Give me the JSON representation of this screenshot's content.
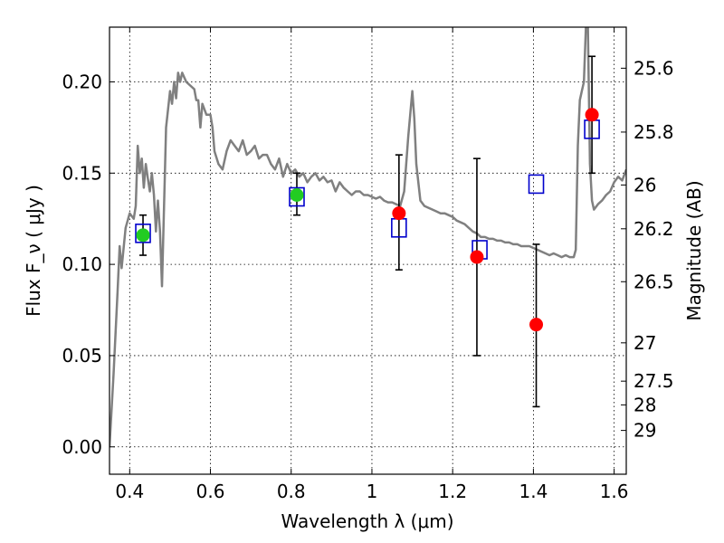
{
  "chart_data": {
    "type": "scatter",
    "xlabel": "Wavelength  λ (μm)",
    "ylabel": "Flux  F_ν  ( μJy )",
    "ylabel_right": "Magnitude (AB)",
    "xlim": [
      0.35,
      1.63
    ],
    "ylim": [
      -0.015,
      0.23
    ],
    "x_ticks": [
      0.4,
      0.6,
      0.8,
      1.0,
      1.2,
      1.4,
      1.6
    ],
    "x_tick_labels": [
      "0.4",
      "0.6",
      "0.8",
      "1",
      "1.2",
      "1.4",
      "1.6"
    ],
    "y_ticks": [
      0.0,
      0.05,
      0.1,
      0.15,
      0.2
    ],
    "y_tick_labels": [
      "0.00",
      "0.05",
      "0.10",
      "0.15",
      "0.20"
    ],
    "right_ticks": [
      {
        "label": "25.6",
        "flux": 0.2075
      },
      {
        "label": "25.8",
        "flux": 0.1725
      },
      {
        "label": "26",
        "flux": 0.1435
      },
      {
        "label": "26.2",
        "flux": 0.1195
      },
      {
        "label": "26.5",
        "flux": 0.0905
      },
      {
        "label": "27",
        "flux": 0.057
      },
      {
        "label": "27.5",
        "flux": 0.036
      },
      {
        "label": "28",
        "flux": 0.023
      },
      {
        "label": "29",
        "flux": 0.009
      }
    ],
    "grid": true,
    "colors": {
      "model": "#808080",
      "observed": "#ff0000",
      "observed_alt": "#22cc22",
      "model_band": "#0000cc",
      "errorbar": "#000000"
    },
    "series": [
      {
        "style": "line",
        "points": [
          [
            0.35,
            0.0
          ],
          [
            0.36,
            0.04
          ],
          [
            0.37,
            0.085
          ],
          [
            0.375,
            0.11
          ],
          [
            0.38,
            0.098
          ],
          [
            0.39,
            0.12
          ],
          [
            0.4,
            0.128
          ],
          [
            0.41,
            0.125
          ],
          [
            0.415,
            0.132
          ],
          [
            0.42,
            0.165
          ],
          [
            0.425,
            0.15
          ],
          [
            0.43,
            0.158
          ],
          [
            0.435,
            0.142
          ],
          [
            0.44,
            0.155
          ],
          [
            0.445,
            0.147
          ],
          [
            0.45,
            0.14
          ],
          [
            0.455,
            0.15
          ],
          [
            0.46,
            0.138
          ],
          [
            0.465,
            0.118
          ],
          [
            0.47,
            0.135
          ],
          [
            0.475,
            0.118
          ],
          [
            0.48,
            0.088
          ],
          [
            0.49,
            0.175
          ],
          [
            0.5,
            0.195
          ],
          [
            0.505,
            0.188
          ],
          [
            0.51,
            0.2
          ],
          [
            0.515,
            0.191
          ],
          [
            0.52,
            0.205
          ],
          [
            0.525,
            0.2
          ],
          [
            0.53,
            0.205
          ],
          [
            0.54,
            0.2
          ],
          [
            0.55,
            0.198
          ],
          [
            0.56,
            0.196
          ],
          [
            0.565,
            0.19
          ],
          [
            0.57,
            0.19
          ],
          [
            0.575,
            0.175
          ],
          [
            0.58,
            0.188
          ],
          [
            0.59,
            0.182
          ],
          [
            0.6,
            0.182
          ],
          [
            0.605,
            0.175
          ],
          [
            0.61,
            0.162
          ],
          [
            0.62,
            0.155
          ],
          [
            0.63,
            0.152
          ],
          [
            0.64,
            0.162
          ],
          [
            0.65,
            0.168
          ],
          [
            0.66,
            0.165
          ],
          [
            0.67,
            0.162
          ],
          [
            0.68,
            0.168
          ],
          [
            0.69,
            0.16
          ],
          [
            0.7,
            0.162
          ],
          [
            0.71,
            0.165
          ],
          [
            0.72,
            0.158
          ],
          [
            0.73,
            0.16
          ],
          [
            0.74,
            0.16
          ],
          [
            0.75,
            0.155
          ],
          [
            0.76,
            0.152
          ],
          [
            0.77,
            0.158
          ],
          [
            0.78,
            0.148
          ],
          [
            0.79,
            0.155
          ],
          [
            0.8,
            0.15
          ],
          [
            0.81,
            0.152
          ],
          [
            0.82,
            0.148
          ],
          [
            0.83,
            0.15
          ],
          [
            0.84,
            0.145
          ],
          [
            0.85,
            0.148
          ],
          [
            0.86,
            0.15
          ],
          [
            0.87,
            0.146
          ],
          [
            0.88,
            0.148
          ],
          [
            0.89,
            0.145
          ],
          [
            0.9,
            0.146
          ],
          [
            0.91,
            0.14
          ],
          [
            0.92,
            0.145
          ],
          [
            0.93,
            0.142
          ],
          [
            0.94,
            0.14
          ],
          [
            0.95,
            0.138
          ],
          [
            0.96,
            0.14
          ],
          [
            0.97,
            0.14
          ],
          [
            0.98,
            0.138
          ],
          [
            0.99,
            0.138
          ],
          [
            1.0,
            0.137
          ],
          [
            1.01,
            0.136
          ],
          [
            1.02,
            0.137
          ],
          [
            1.03,
            0.135
          ],
          [
            1.04,
            0.134
          ],
          [
            1.05,
            0.134
          ],
          [
            1.06,
            0.133
          ],
          [
            1.07,
            0.132
          ],
          [
            1.08,
            0.14
          ],
          [
            1.09,
            0.17
          ],
          [
            1.1,
            0.195
          ],
          [
            1.105,
            0.18
          ],
          [
            1.11,
            0.155
          ],
          [
            1.12,
            0.135
          ],
          [
            1.13,
            0.132
          ],
          [
            1.14,
            0.131
          ],
          [
            1.15,
            0.13
          ],
          [
            1.16,
            0.129
          ],
          [
            1.17,
            0.128
          ],
          [
            1.18,
            0.128
          ],
          [
            1.19,
            0.127
          ],
          [
            1.2,
            0.126
          ],
          [
            1.21,
            0.124
          ],
          [
            1.22,
            0.123
          ],
          [
            1.23,
            0.122
          ],
          [
            1.24,
            0.12
          ],
          [
            1.25,
            0.118
          ],
          [
            1.26,
            0.117
          ],
          [
            1.27,
            0.115
          ],
          [
            1.28,
            0.115
          ],
          [
            1.29,
            0.114
          ],
          [
            1.3,
            0.114
          ],
          [
            1.31,
            0.113
          ],
          [
            1.32,
            0.113
          ],
          [
            1.33,
            0.112
          ],
          [
            1.34,
            0.112
          ],
          [
            1.35,
            0.111
          ],
          [
            1.36,
            0.111
          ],
          [
            1.37,
            0.11
          ],
          [
            1.38,
            0.11
          ],
          [
            1.39,
            0.11
          ],
          [
            1.4,
            0.109
          ],
          [
            1.41,
            0.108
          ],
          [
            1.42,
            0.107
          ],
          [
            1.43,
            0.106
          ],
          [
            1.44,
            0.105
          ],
          [
            1.45,
            0.106
          ],
          [
            1.46,
            0.105
          ],
          [
            1.47,
            0.104
          ],
          [
            1.48,
            0.105
          ],
          [
            1.49,
            0.104
          ],
          [
            1.5,
            0.104
          ],
          [
            1.505,
            0.108
          ],
          [
            1.51,
            0.165
          ],
          [
            1.515,
            0.19
          ],
          [
            1.52,
            0.195
          ],
          [
            1.525,
            0.2
          ],
          [
            1.53,
            0.23
          ],
          [
            1.535,
            0.23
          ],
          [
            1.54,
            0.155
          ],
          [
            1.545,
            0.135
          ],
          [
            1.55,
            0.13
          ],
          [
            1.56,
            0.133
          ],
          [
            1.57,
            0.135
          ],
          [
            1.58,
            0.138
          ],
          [
            1.59,
            0.14
          ],
          [
            1.6,
            0.145
          ],
          [
            1.61,
            0.148
          ],
          [
            1.62,
            0.146
          ],
          [
            1.63,
            0.152
          ]
        ]
      },
      {
        "style": "open-square",
        "points": [
          [
            0.433,
            0.117
          ],
          [
            0.814,
            0.137
          ],
          [
            1.067,
            0.12
          ],
          [
            1.267,
            0.108
          ],
          [
            1.407,
            0.144
          ],
          [
            1.545,
            0.174
          ]
        ]
      },
      {
        "style": "filled-circle",
        "points": [
          [
            0.433,
            0.116
          ],
          [
            0.814,
            0.138
          ]
        ],
        "yerr_low": [
          0.011,
          0.011
        ],
        "yerr_high": [
          0.011,
          0.012
        ],
        "color_key": "observed_alt"
      },
      {
        "style": "filled-circle",
        "points": [
          [
            1.067,
            0.128
          ],
          [
            1.26,
            0.104
          ],
          [
            1.407,
            0.067
          ],
          [
            1.545,
            0.182
          ]
        ],
        "yerr_low": [
          0.031,
          0.054,
          0.045,
          0.032
        ],
        "yerr_high": [
          0.032,
          0.054,
          0.044,
          0.032
        ],
        "color_key": "observed"
      }
    ]
  }
}
